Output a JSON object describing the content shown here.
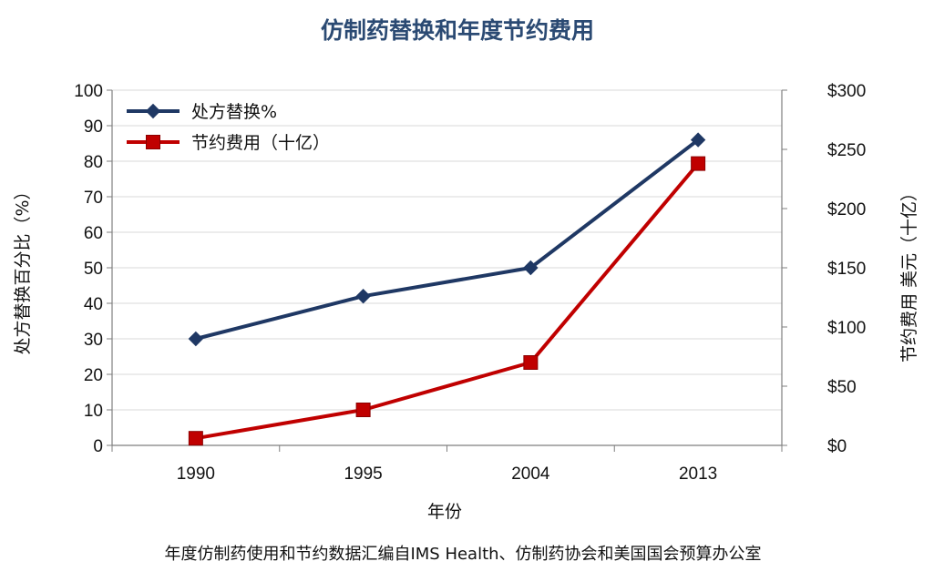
{
  "chart_data": {
    "type": "line",
    "title": "仿制药替换和年度节约费用",
    "xlabel": "年份",
    "ylabel_left": "处方替换百分比（%）",
    "ylabel_right": "节约费用 美元（十亿）",
    "categories": [
      "1990",
      "1995",
      "2004",
      "2013"
    ],
    "y_left": {
      "min": 0,
      "max": 100,
      "step": 10,
      "tick_labels": [
        "0",
        "10",
        "20",
        "30",
        "40",
        "50",
        "60",
        "70",
        "80",
        "90",
        "100"
      ]
    },
    "y_right": {
      "min": 0,
      "max": 300,
      "step": 50,
      "tick_labels": [
        "$0",
        "$50",
        "$100",
        "$150",
        "$200",
        "$250",
        "$300"
      ]
    },
    "series": [
      {
        "name": "处方替换%",
        "axis": "left",
        "color": "#1f3864",
        "marker": "diamond",
        "values": [
          30,
          42,
          50,
          86
        ]
      },
      {
        "name": "节约费用（十亿）",
        "axis": "right",
        "color": "#c00000",
        "marker": "square",
        "values": [
          6,
          30,
          70,
          238
        ]
      }
    ],
    "grid": "horizontal",
    "legend": "top-left",
    "source": "年度仿制药使用和节约数据汇编自IMS Health、仿制药协会和美国国会预算办公室"
  }
}
